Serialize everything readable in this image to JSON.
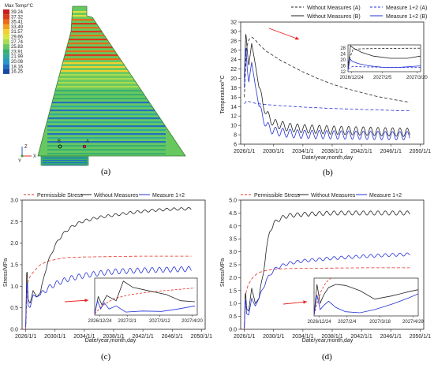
{
  "colors": {
    "black": "#222222",
    "blue": "#2430d8",
    "red": "#e53020",
    "arrow": "#e82020"
  },
  "captions": {
    "a": "(a)",
    "b": "(b)",
    "c": "(c)",
    "d": "(d)"
  },
  "panel_a": {
    "title": "Max Temp/°C",
    "levels": [
      "39.24",
      "37.32",
      "35.41",
      "33.49",
      "31.57",
      "29.66",
      "27.74",
      "25.83",
      "23.91",
      "21.99",
      "20.08",
      "18.16",
      "16.25"
    ],
    "level_colors": [
      "#c81e1e",
      "#d93a1a",
      "#e86a1a",
      "#f0a020",
      "#f2d030",
      "#d8e840",
      "#a8dc50",
      "#68c860",
      "#38b070",
      "#30a8a0",
      "#2898c8",
      "#2070c0",
      "#1a48a0"
    ],
    "markers": [
      "B",
      "A"
    ],
    "axes": {
      "z": "Z",
      "y": "Y",
      "x": "X"
    }
  },
  "chart_data": [
    {
      "id": "b",
      "type": "line",
      "xlabel": "Date/year,month,day",
      "ylabel": "Temperature/°C",
      "xticks": [
        "2026/1/1",
        "2030/1/1",
        "2034/1/1",
        "2038/1/1",
        "2042/1/1",
        "2046/1/1",
        "2050/1/1"
      ],
      "ylim": [
        6,
        32
      ],
      "yticks": [
        6,
        8,
        10,
        12,
        14,
        16,
        18,
        20,
        22,
        24,
        26,
        28,
        30,
        32
      ],
      "series": [
        {
          "name": "Without Measures (A)",
          "style": "dashed",
          "color": "black",
          "x": [
            2026.0,
            2026.3,
            2026.6,
            2027.0,
            2027.4,
            2027.8,
            2028.3,
            2029.0,
            2030.0,
            2031.0,
            2032.0,
            2033.0,
            2034.0,
            2036.0,
            2038.0,
            2040.0,
            2042.0,
            2044.0,
            2046.0,
            2048.6
          ],
          "y": [
            16.0,
            26.5,
            28.2,
            28.8,
            28.4,
            27.6,
            26.8,
            25.8,
            24.8,
            23.8,
            23.0,
            22.2,
            21.4,
            20.0,
            18.8,
            17.8,
            17.0,
            16.2,
            15.6,
            14.9
          ]
        },
        {
          "name": "Measure 1+2 (A)",
          "style": "dashed",
          "color": "blue",
          "x": [
            2026.0,
            2026.3,
            2026.8,
            2027.5,
            2028.5,
            2030.0,
            2032.0,
            2034.0,
            2038.0,
            2042.0,
            2046.0,
            2048.6
          ],
          "y": [
            14.6,
            15.2,
            15.0,
            14.7,
            14.5,
            14.3,
            14.1,
            13.9,
            13.6,
            13.4,
            13.2,
            13.1
          ]
        },
        {
          "name": "Without Measures (B)",
          "style": "solid",
          "color": "black",
          "osc_amp": 0.9,
          "x": [
            2026.0,
            2026.2,
            2026.4,
            2026.6,
            2027.0,
            2027.5,
            2028.0,
            2028.5,
            2029.0,
            2030.0,
            2032.0,
            2034.0,
            2038.0,
            2042.0,
            2046.0,
            2048.6
          ],
          "y": [
            20.0,
            30.0,
            26.0,
            22.5,
            27.5,
            23.0,
            18.0,
            15.0,
            12.5,
            10.5,
            9.6,
            9.3,
            9.0,
            8.8,
            8.6,
            8.5
          ]
        },
        {
          "name": "Measure 1+2 (B)",
          "style": "solid",
          "color": "blue",
          "osc_amp": 0.9,
          "x": [
            2026.0,
            2026.2,
            2026.4,
            2026.6,
            2027.0,
            2027.5,
            2028.0,
            2028.5,
            2029.0,
            2030.0,
            2032.0,
            2034.0,
            2038.0,
            2042.0,
            2046.0,
            2048.6
          ],
          "y": [
            18.0,
            27.0,
            22.0,
            19.0,
            23.5,
            18.5,
            14.0,
            12.0,
            10.0,
            8.8,
            8.3,
            8.1,
            8.0,
            7.9,
            7.8,
            7.8
          ]
        }
      ],
      "inset": {
        "xticks": [
          "2026/12/24",
          "2027/2/5",
          "2027/3/20"
        ],
        "ylim": [
          12,
          30
        ],
        "yticks": [
          12,
          16,
          20,
          24,
          28
        ],
        "series": [
          {
            "name": "Without Measures (A)",
            "style": "dashed",
            "color": "black",
            "x": [
              0,
              0.3,
              0.8,
              1.5,
              2.5,
              3.5,
              4.3
            ],
            "y": [
              18,
              27,
              27.4,
              27.5,
              27.6,
              27.7,
              27.8
            ]
          },
          {
            "name": "Measure 1+2 (A)",
            "style": "dashed",
            "color": "blue",
            "x": [
              0,
              0.3,
              0.8,
              1.5,
              2.5,
              3.5,
              4.3
            ],
            "y": [
              14,
              15.6,
              15.3,
              15.1,
              14.9,
              14.8,
              14.8
            ]
          },
          {
            "name": "Without Measures (B)",
            "style": "solid",
            "color": "black",
            "x": [
              0,
              0.15,
              0.3,
              0.8,
              1.5,
              2.5,
              3.5,
              4.3
            ],
            "y": [
              14,
              29.5,
              28,
              25,
              22.5,
              21,
              21,
              22.5
            ]
          },
          {
            "name": "Measure 1+2 (B)",
            "style": "solid",
            "color": "blue",
            "x": [
              0,
              0.12,
              0.25,
              0.6,
              1.2,
              2.0,
              3.0,
              4.3
            ],
            "y": [
              13,
              20.5,
              19,
              17.5,
              16,
              15,
              14.9,
              15.9
            ]
          }
        ]
      }
    },
    {
      "id": "c",
      "type": "line",
      "xlabel": "Date/year,month,day",
      "ylabel": "Stress/MPa",
      "xticks": [
        "2026/1/1",
        "2030/1/1",
        "2034/1/1",
        "2038/1/1",
        "2042/1/1",
        "2046/1/1",
        "2050/1/1"
      ],
      "ylim": [
        0,
        3.0
      ],
      "yticks": [
        0.0,
        0.5,
        1.0,
        1.5,
        2.0,
        2.5,
        3.0
      ],
      "series": [
        {
          "name": "Permissible Stress",
          "style": "dashed",
          "color": "red",
          "x": [
            2026.0,
            2026.2,
            2026.5,
            2027.0,
            2027.5,
            2028.0,
            2029.0,
            2030.0,
            2031.0,
            2032.0,
            2034.0,
            2038.0,
            2042.0,
            2046.0,
            2048.6
          ],
          "y": [
            0.0,
            1.05,
            1.2,
            1.32,
            1.42,
            1.5,
            1.58,
            1.62,
            1.65,
            1.67,
            1.68,
            1.69,
            1.7,
            1.7,
            1.7
          ]
        },
        {
          "name": "Without Measures",
          "style": "solid",
          "color": "black",
          "osc_amp": 0.03,
          "x": [
            2026.0,
            2026.15,
            2026.3,
            2026.6,
            2027.0,
            2027.5,
            2028.0,
            2028.6,
            2029.0,
            2030.0,
            2031.0,
            2032.0,
            2033.0,
            2034.0,
            2036.0,
            2038.0,
            2040.0,
            2042.0,
            2044.0,
            2046.0,
            2048.6
          ],
          "y": [
            0.05,
            1.55,
            0.7,
            0.6,
            0.9,
            0.75,
            0.85,
            1.3,
            1.55,
            1.95,
            2.2,
            2.35,
            2.45,
            2.52,
            2.6,
            2.65,
            2.7,
            2.74,
            2.77,
            2.79,
            2.8
          ]
        },
        {
          "name": "Measure 1+2",
          "style": "solid",
          "color": "blue",
          "osc_amp": 0.06,
          "x": [
            2026.0,
            2026.15,
            2026.3,
            2026.6,
            2027.0,
            2027.5,
            2028.0,
            2029.0,
            2030.0,
            2031.0,
            2032.0,
            2034.0,
            2036.0,
            2038.0,
            2042.0,
            2046.0,
            2048.6
          ],
          "y": [
            0.05,
            1.25,
            0.55,
            0.5,
            0.8,
            0.75,
            0.8,
            0.95,
            1.05,
            1.12,
            1.18,
            1.25,
            1.3,
            1.34,
            1.37,
            1.39,
            1.4
          ]
        }
      ],
      "inset": {
        "xticks": [
          "2026/12/24",
          "2027/2/1",
          "2027/3/12",
          "2027/4/20"
        ],
        "ylim": [
          0,
          1.8
        ],
        "yticks": [],
        "series": [
          {
            "name": "Permissible Stress",
            "style": "dashed",
            "color": "red",
            "x": [
              0,
              0.3,
              0.8,
              1.5,
              2.5,
              3.5,
              4.2
            ],
            "y": [
              0.05,
              0.45,
              0.8,
              1.0,
              1.15,
              1.25,
              1.32
            ]
          },
          {
            "name": "Without Measures",
            "style": "solid",
            "color": "black",
            "x": [
              0,
              0.15,
              0.3,
              0.5,
              0.9,
              1.2,
              1.6,
              2.2,
              3.0,
              3.6,
              4.2
            ],
            "y": [
              0.05,
              0.9,
              0.5,
              0.95,
              0.7,
              1.65,
              1.35,
              1.2,
              1.0,
              0.7,
              0.65
            ]
          },
          {
            "name": "Measure 1+2",
            "style": "solid",
            "color": "blue",
            "x": [
              0,
              0.12,
              0.25,
              0.4,
              0.6,
              0.9,
              1.3,
              2.0,
              2.8,
              3.5,
              4.2
            ],
            "y": [
              0.05,
              0.7,
              0.3,
              0.6,
              0.3,
              0.45,
              0.15,
              0.2,
              0.18,
              0.3,
              0.45
            ]
          }
        ]
      }
    },
    {
      "id": "d",
      "type": "line",
      "xlabel": "Date/year,month,day",
      "ylabel": "Stress/MPa",
      "xticks": [
        "2026/1/1",
        "2030/1/1",
        "2034/1/1",
        "2038/1/1",
        "2042/1/1",
        "2046/1/1",
        "2050/1/1"
      ],
      "ylim": [
        0,
        5.0
      ],
      "yticks": [
        0.0,
        0.5,
        1.0,
        1.5,
        2.0,
        2.5,
        3.0,
        3.5,
        4.0,
        4.5,
        5.0
      ],
      "series": [
        {
          "name": "Permissible Stress",
          "style": "dashed",
          "color": "red",
          "x": [
            2026.0,
            2026.2,
            2026.5,
            2027.0,
            2027.5,
            2028.0,
            2029.0,
            2030.0,
            2031.0,
            2032.0,
            2034.0,
            2038.0,
            2042.0,
            2046.0,
            2048.6
          ],
          "y": [
            0.0,
            1.4,
            1.7,
            1.95,
            2.1,
            2.2,
            2.28,
            2.32,
            2.34,
            2.35,
            2.36,
            2.37,
            2.38,
            2.38,
            2.38
          ]
        },
        {
          "name": "Without Measures",
          "style": "solid",
          "color": "black",
          "osc_amp": 0.08,
          "x": [
            2026.0,
            2026.15,
            2026.3,
            2026.6,
            2027.0,
            2027.5,
            2028.0,
            2028.6,
            2029.0,
            2029.5,
            2030.0,
            2031.0,
            2032.0,
            2034.0,
            2038.0,
            2042.0,
            2046.0,
            2048.6
          ],
          "y": [
            0.05,
            1.6,
            0.8,
            0.7,
            1.6,
            1.0,
            1.2,
            2.2,
            3.1,
            3.8,
            4.1,
            4.3,
            4.4,
            4.45,
            4.5,
            4.5,
            4.5,
            4.5
          ]
        },
        {
          "name": "Measure 1+2",
          "style": "solid",
          "color": "blue",
          "osc_amp": 0.06,
          "x": [
            2026.0,
            2026.15,
            2026.3,
            2026.6,
            2027.0,
            2027.5,
            2028.0,
            2029.0,
            2030.0,
            2031.0,
            2032.0,
            2034.0,
            2038.0,
            2042.0,
            2046.0,
            2048.6
          ],
          "y": [
            0.05,
            1.3,
            0.6,
            0.55,
            1.2,
            0.9,
            1.2,
            1.9,
            2.3,
            2.45,
            2.55,
            2.65,
            2.75,
            2.82,
            2.88,
            2.9
          ]
        }
      ],
      "inset": {
        "xticks": [
          "2026/12/24",
          "2027/2/4",
          "2027/3/18",
          "2027/4/29"
        ],
        "ylim": [
          0,
          1.8
        ],
        "yticks": [],
        "series": [
          {
            "name": "Permissible Stress",
            "style": "dashed",
            "color": "red",
            "x": [
              0,
              0.15,
              0.3,
              0.5,
              0.7
            ],
            "y": [
              0.05,
              0.7,
              1.2,
              1.6,
              1.8
            ]
          },
          {
            "name": "Without Measures",
            "style": "solid",
            "color": "black",
            "x": [
              0,
              0.12,
              0.25,
              0.4,
              0.6,
              0.9,
              1.3,
              1.9,
              2.5,
              3.2,
              3.9,
              4.3
            ],
            "y": [
              0.05,
              1.5,
              0.6,
              1.0,
              1.35,
              1.5,
              1.45,
              1.2,
              0.8,
              0.95,
              1.15,
              1.25
            ]
          },
          {
            "name": "Measure 1+2",
            "style": "solid",
            "color": "blue",
            "x": [
              0,
              0.12,
              0.25,
              0.4,
              0.6,
              0.9,
              1.3,
              1.9,
              2.5,
              3.2,
              3.9,
              4.3
            ],
            "y": [
              0.05,
              1.0,
              0.3,
              0.5,
              0.7,
              0.4,
              0.2,
              0.15,
              0.3,
              0.55,
              0.85,
              1.05
            ]
          }
        ]
      }
    }
  ]
}
